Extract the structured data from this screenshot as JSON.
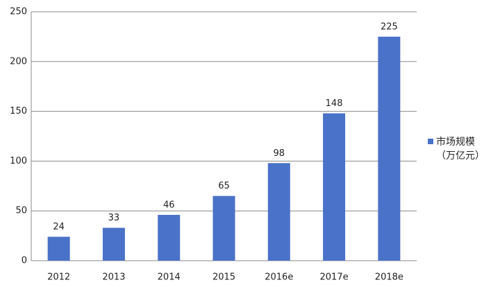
{
  "chart_data": {
    "type": "bar",
    "categories": [
      "2012",
      "2013",
      "2014",
      "2015",
      "2016e",
      "2017e",
      "2018e"
    ],
    "series": [
      {
        "name": "市场规模（万亿元）",
        "color": "#4a72c8",
        "values": [
          24,
          33,
          46,
          65,
          98,
          148,
          225
        ]
      }
    ],
    "ylim": [
      0,
      250
    ],
    "yticks": [
      0,
      50,
      100,
      150,
      200,
      250
    ],
    "grid": true,
    "legend": "right"
  }
}
